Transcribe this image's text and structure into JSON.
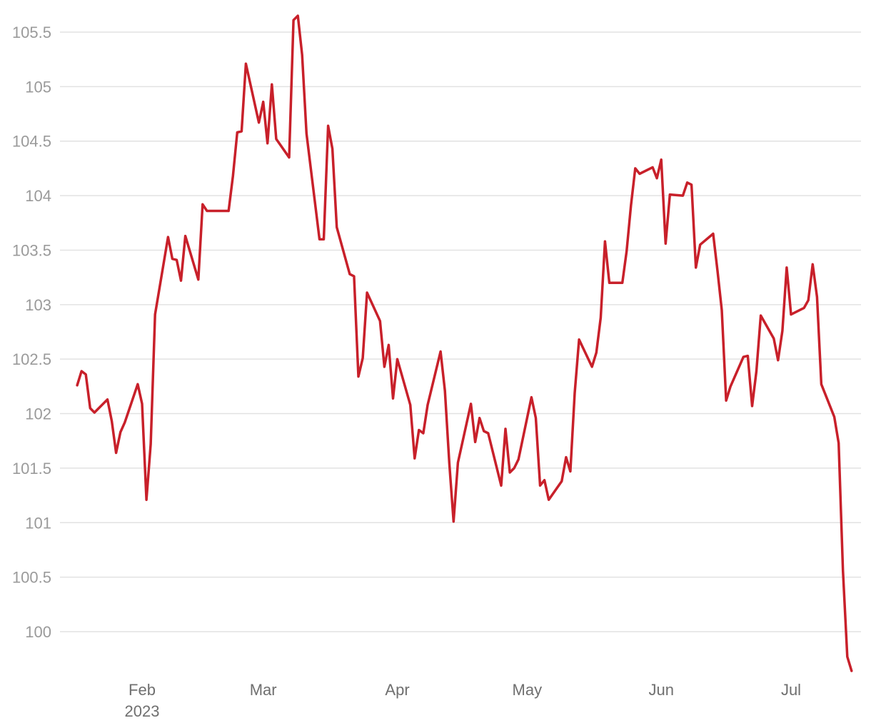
{
  "chart_data": {
    "type": "line",
    "title": "",
    "xlabel": "",
    "ylabel": "",
    "ylim": [
      99.7,
      105.75
    ],
    "grid": true,
    "legend": "none",
    "y_ticks": [
      "100",
      "100.5",
      "101",
      "101.5",
      "102",
      "102.5",
      "103",
      "103.5",
      "104",
      "104.5",
      "105",
      "105.5"
    ],
    "x_ticks": [
      {
        "date": "2023-02-01",
        "label": "Feb",
        "sublabel": "2023"
      },
      {
        "date": "2023-03-01",
        "label": "Mar",
        "sublabel": ""
      },
      {
        "date": "2023-04-01",
        "label": "Apr",
        "sublabel": ""
      },
      {
        "date": "2023-05-01",
        "label": "May",
        "sublabel": ""
      },
      {
        "date": "2023-06-01",
        "label": "Jun",
        "sublabel": ""
      },
      {
        "date": "2023-07-01",
        "label": "Jul",
        "sublabel": ""
      }
    ],
    "series": [
      {
        "color": "#c8202a",
        "x": [
          "2023-01-17",
          "2023-01-18",
          "2023-01-19",
          "2023-01-20",
          "2023-01-21",
          "2023-01-24",
          "2023-01-25",
          "2023-01-26",
          "2023-01-27",
          "2023-01-28",
          "2023-01-31",
          "2023-02-01",
          "2023-02-02",
          "2023-02-03",
          "2023-02-04",
          "2023-02-07",
          "2023-02-08",
          "2023-02-09",
          "2023-02-10",
          "2023-02-11",
          "2023-02-14",
          "2023-02-15",
          "2023-02-16",
          "2023-02-17",
          "2023-02-18",
          "2023-02-21",
          "2023-02-22",
          "2023-02-23",
          "2023-02-24",
          "2023-02-25",
          "2023-02-28",
          "2023-03-01",
          "2023-03-02",
          "2023-03-03",
          "2023-03-04",
          "2023-03-07",
          "2023-03-08",
          "2023-03-09",
          "2023-03-10",
          "2023-03-11",
          "2023-03-14",
          "2023-03-15",
          "2023-03-16",
          "2023-03-17",
          "2023-03-18",
          "2023-03-21",
          "2023-03-22",
          "2023-03-23",
          "2023-03-24",
          "2023-03-25",
          "2023-03-28",
          "2023-03-29",
          "2023-03-30",
          "2023-03-31",
          "2023-04-01",
          "2023-04-04",
          "2023-04-05",
          "2023-04-06",
          "2023-04-07",
          "2023-04-08",
          "2023-04-11",
          "2023-04-12",
          "2023-04-13",
          "2023-04-14",
          "2023-04-15",
          "2023-04-18",
          "2023-04-19",
          "2023-04-20",
          "2023-04-21",
          "2023-04-22",
          "2023-04-25",
          "2023-04-26",
          "2023-04-27",
          "2023-04-28",
          "2023-04-29",
          "2023-05-02",
          "2023-05-03",
          "2023-05-04",
          "2023-05-05",
          "2023-05-06",
          "2023-05-09",
          "2023-05-10",
          "2023-05-11",
          "2023-05-12",
          "2023-05-13",
          "2023-05-16",
          "2023-05-17",
          "2023-05-18",
          "2023-05-19",
          "2023-05-20",
          "2023-05-23",
          "2023-05-24",
          "2023-05-25",
          "2023-05-26",
          "2023-05-27",
          "2023-05-30",
          "2023-05-31",
          "2023-06-01",
          "2023-06-02",
          "2023-06-03",
          "2023-06-06",
          "2023-06-07",
          "2023-06-08",
          "2023-06-09",
          "2023-06-10",
          "2023-06-13",
          "2023-06-14",
          "2023-06-15",
          "2023-06-16",
          "2023-06-17",
          "2023-06-20",
          "2023-06-21",
          "2023-06-22",
          "2023-06-23",
          "2023-06-24",
          "2023-06-27",
          "2023-06-28",
          "2023-06-29",
          "2023-06-30",
          "2023-07-01",
          "2023-07-04",
          "2023-07-05",
          "2023-07-06",
          "2023-07-07",
          "2023-07-08",
          "2023-07-11",
          "2023-07-12",
          "2023-07-13",
          "2023-07-14",
          "2023-07-15"
        ],
        "values": [
          102.26,
          102.39,
          102.36,
          102.05,
          102.01,
          102.13,
          101.93,
          101.64,
          101.83,
          101.92,
          102.27,
          102.09,
          101.21,
          101.72,
          102.91,
          103.62,
          103.42,
          103.41,
          103.22,
          103.63,
          103.23,
          103.92,
          103.86,
          103.86,
          103.86,
          103.86,
          104.18,
          104.58,
          104.59,
          105.21,
          104.67,
          104.86,
          104.48,
          105.02,
          104.52,
          104.35,
          105.61,
          105.65,
          105.29,
          104.57,
          103.6,
          103.6,
          104.64,
          104.43,
          103.71,
          103.28,
          103.26,
          102.34,
          102.51,
          103.11,
          102.85,
          102.43,
          102.63,
          102.14,
          102.5,
          102.08,
          101.59,
          101.85,
          101.82,
          102.08,
          102.57,
          102.21,
          101.55,
          101.01,
          101.55,
          102.09,
          101.74,
          101.96,
          101.84,
          101.82,
          101.34,
          101.86,
          101.46,
          101.5,
          101.58,
          102.15,
          101.96,
          101.34,
          101.39,
          101.21,
          101.38,
          101.6,
          101.47,
          102.19,
          102.68,
          102.43,
          102.56,
          102.88,
          103.58,
          103.2,
          103.2,
          103.49,
          103.91,
          104.25,
          104.2,
          104.26,
          104.16,
          104.33,
          103.56,
          104.01,
          104.0,
          104.12,
          104.1,
          103.34,
          103.55,
          103.65,
          103.31,
          102.95,
          102.12,
          102.25,
          102.52,
          102.53,
          102.07,
          102.39,
          102.9,
          102.69,
          102.49,
          102.76,
          103.34,
          102.91,
          102.97,
          103.04,
          103.37,
          103.07,
          102.27,
          101.97,
          101.73,
          100.56,
          99.77,
          99.64
        ]
      }
    ]
  }
}
